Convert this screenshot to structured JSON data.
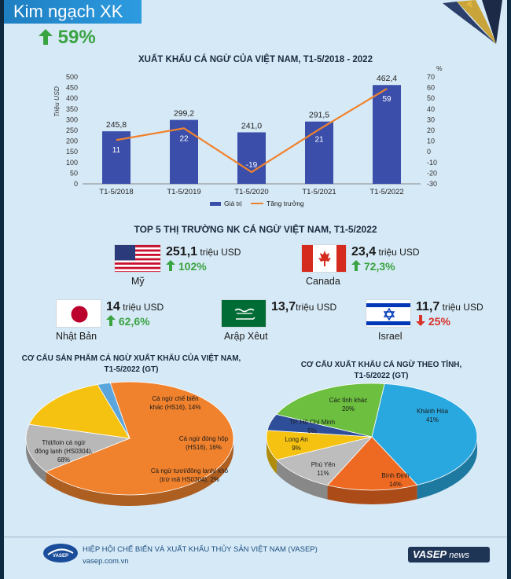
{
  "header": {
    "title": "Kim ngạch XK",
    "growth": "59%"
  },
  "chart_data": [
    {
      "type": "bar",
      "title": "XUẤT KHẨU CÁ NGỪ CỦA VIỆT NAM,  T1-5/2018 - 2022",
      "categories": [
        "T1-5/2018",
        "T1-5/2019",
        "T1-5/2020",
        "T1-5/2021",
        "T1-5/2022"
      ],
      "series": [
        {
          "name": "Giá trị",
          "type": "bar",
          "axis": "left",
          "values": [
            245.8,
            299.2,
            241.0,
            291.5,
            462.4
          ],
          "labels": [
            "245,8",
            "299,2",
            "241,0",
            "291,5",
            "462,4"
          ],
          "color": "#3b4faa"
        },
        {
          "name": "Tăng trưởng",
          "type": "line",
          "axis": "right",
          "values": [
            11,
            22,
            -19,
            21,
            59
          ],
          "labels": [
            "11",
            "22",
            "-19",
            "21",
            "59"
          ],
          "color": "#f0822e"
        }
      ],
      "ylabel": "Triệu USD",
      "ylim": [
        0,
        500
      ],
      "yticks": [
        "0",
        "50",
        "100",
        "150",
        "200",
        "250",
        "300",
        "350",
        "400",
        "450",
        "500"
      ],
      "y2label": "%",
      "y2lim": [
        -30,
        70
      ],
      "y2ticks": [
        "-30",
        "-20",
        "-10",
        "0",
        "10",
        "20",
        "30",
        "40",
        "50",
        "60",
        "70"
      ],
      "legend": "bottom-center"
    },
    {
      "type": "pie",
      "title_line1": "CƠ CẤU SẢN PHẨM CÁ NGỪ XUẤT KHẨU CỦA VIỆT NAM,",
      "title_line2": "T1-5/2022 (GT)",
      "slices": [
        {
          "label_line1": "Thịt/loin cá ngừ",
          "label_line2": "đông lạnh (HS0304),",
          "pct_label": "68%",
          "value": 68,
          "color": "#f0822e"
        },
        {
          "label_line1": "Cá ngừ chế biến",
          "label_line2": "khác (HS16), 14%",
          "pct_label": "",
          "value": 14,
          "color": "#b8b8b8"
        },
        {
          "label_line1": "Cá ngừ đóng hộp",
          "label_line2": "(HS16), 16%",
          "pct_label": "",
          "value": 16,
          "color": "#f5c211"
        },
        {
          "label_line1": "Cá ngừ tươi/đông lạnh/ khô",
          "label_line2": "(trừ mã HS0304),  2%",
          "pct_label": "",
          "value": 2,
          "color": "#5aa5dc"
        }
      ]
    },
    {
      "type": "pie",
      "title_line1": "CƠ CẤU XUẤT KHẨU CÁ NGỪ  THEO TỈNH,",
      "title_line2": "T1-5/2022 (GT)",
      "slices": [
        {
          "label": "Khánh Hòa",
          "pct_label": "41%",
          "value": 41,
          "color": "#29a8e0"
        },
        {
          "label": "Bình Định",
          "pct_label": "14%",
          "value": 14,
          "color": "#ee6a22"
        },
        {
          "label": "Phú Yên",
          "pct_label": "11%",
          "value": 11,
          "color": "#bdbdbd"
        },
        {
          "label": "Long An",
          "pct_label": "9%",
          "value": 9,
          "color": "#f5c211"
        },
        {
          "label": "TP. Hồ Chí Minh",
          "pct_label": "5%",
          "value": 5,
          "color": "#2f4e9a"
        },
        {
          "label": "Các tỉnh khác",
          "pct_label": "20%",
          "value": 20,
          "color": "#6cbf3f"
        }
      ]
    }
  ],
  "markets": {
    "title": "TOP 5 THỊ TRƯỜNG NK CÁ NGỪ VIỆT NAM, T1-5/2022",
    "items": [
      {
        "name": "Mỹ",
        "value": "251,1",
        "unit": "triệu USD",
        "change": "102%",
        "direction": "up",
        "flag": "usa-flag-icon"
      },
      {
        "name": "Canada",
        "value": "23,4",
        "unit": "triệu USD",
        "change": "72,3%",
        "direction": "up",
        "flag": "canada-flag-icon"
      },
      {
        "name": "Nhật Bản",
        "value": "14",
        "unit": "triệu USD",
        "change": "62,6%",
        "direction": "up",
        "flag": "japan-flag-icon"
      },
      {
        "name": "Arập Xêut",
        "value": "13,7",
        "unit": "triệu USD",
        "change": "",
        "direction": "none",
        "flag": "saudi-flag-icon"
      },
      {
        "name": "Israel",
        "value": "11,7",
        "unit": "triệu USD",
        "change": "25%",
        "direction": "down",
        "flag": "israel-flag-icon"
      }
    ]
  },
  "footer": {
    "org": "HIỆP HỘI CHẾ BIẾN VÀ XUẤT KHẨU THỦY SẢN VIỆT NAM (VASEP)",
    "website": "vasep.com.vn",
    "badge_main": "VASEP",
    "badge_sub": "news",
    "logo_text": "VASEP"
  },
  "colors": {
    "bar": "#3b4faa",
    "line": "#f0822e",
    "up": "#3aa342",
    "down": "#d9322b"
  }
}
